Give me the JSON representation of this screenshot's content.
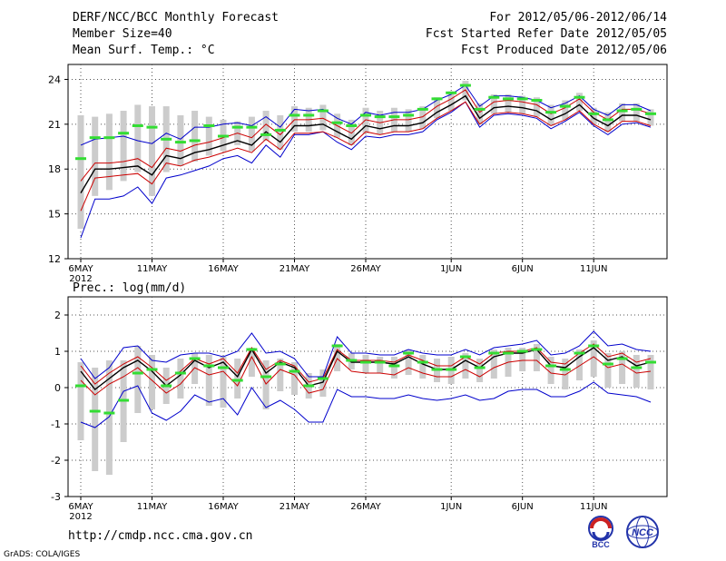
{
  "header": {
    "title": "DERF/NCC/BCC Monthly Forecast",
    "member_size": "Member Size=40",
    "variable": "Mean Surf. Temp.: °C",
    "for_range": "For 2012/05/06-2012/06/14",
    "started": "Fcst Started Refer Date 2012/05/05",
    "produced": "Fcst Produced Date 2012/05/06"
  },
  "footer": {
    "url": "http://cmdp.ncc.cma.gov.cn",
    "grads": "GrADS: COLA/IGES",
    "logo_bcc": "BCC",
    "logo_ncc": "NCC"
  },
  "colors": {
    "ensemble_mean": "#000000",
    "spread_inner": "#cc0000",
    "spread_outer": "#0000cc",
    "member_box": "#cccccc",
    "observed": "#33dd33",
    "grid": "#555555"
  },
  "chart_data": [
    {
      "type": "line",
      "title": "Mean Surf. Temp.: °C",
      "days": 40,
      "x_tick_labels": [
        "6MAY",
        "11MAY",
        "16MAY",
        "21MAY",
        "26MAY",
        "1JUN",
        "6JUN",
        "11JUN"
      ],
      "x_tick_days": [
        0,
        5,
        10,
        15,
        20,
        26,
        31,
        36
      ],
      "year_label": "2012",
      "ylim": [
        12,
        25
      ],
      "yticks": [
        12,
        15,
        18,
        21,
        24
      ],
      "series": [
        {
          "name": "ensemble-mean",
          "values": [
            16.4,
            18.0,
            18.0,
            18.1,
            18.2,
            17.6,
            18.9,
            18.7,
            19.1,
            19.3,
            19.6,
            19.9,
            19.6,
            20.5,
            19.8,
            20.9,
            20.9,
            21.0,
            20.5,
            20.0,
            20.9,
            20.7,
            20.9,
            20.9,
            21.1,
            21.8,
            22.3,
            22.9,
            21.4,
            22.1,
            22.2,
            22.1,
            21.9,
            21.3,
            21.7,
            22.3,
            21.4,
            20.9,
            21.6,
            21.6,
            21.3
          ]
        },
        {
          "name": "red-upper",
          "values": [
            17.2,
            18.4,
            18.4,
            18.5,
            18.7,
            18.1,
            19.4,
            19.2,
            19.6,
            19.8,
            20.1,
            20.4,
            20.1,
            21.0,
            20.3,
            21.3,
            21.3,
            21.4,
            20.9,
            20.4,
            21.3,
            21.1,
            21.3,
            21.3,
            21.5,
            22.2,
            22.7,
            23.3,
            21.8,
            22.5,
            22.6,
            22.5,
            22.3,
            21.7,
            22.1,
            22.7,
            21.8,
            21.3,
            22.0,
            22.0,
            21.7
          ]
        },
        {
          "name": "red-lower",
          "values": [
            15.2,
            17.4,
            17.5,
            17.6,
            17.7,
            17.0,
            18.4,
            18.2,
            18.6,
            18.8,
            19.1,
            19.4,
            19.1,
            20.0,
            19.3,
            20.4,
            20.4,
            20.5,
            20.1,
            19.6,
            20.5,
            20.3,
            20.5,
            20.5,
            20.7,
            21.4,
            21.9,
            22.5,
            21.0,
            21.7,
            21.8,
            21.7,
            21.5,
            20.9,
            21.3,
            21.9,
            21.0,
            20.5,
            21.2,
            21.2,
            20.9
          ]
        },
        {
          "name": "blue-upper",
          "values": [
            19.6,
            20.0,
            20.1,
            20.2,
            19.9,
            19.7,
            20.4,
            20.0,
            20.8,
            20.8,
            21.0,
            21.1,
            20.9,
            21.5,
            20.8,
            22.0,
            21.9,
            22.0,
            21.4,
            21.0,
            21.8,
            21.6,
            21.8,
            21.8,
            22.0,
            22.6,
            23.0,
            23.6,
            22.2,
            22.9,
            22.9,
            22.8,
            22.6,
            22.1,
            22.4,
            22.9,
            22.0,
            21.6,
            22.3,
            22.3,
            21.9
          ]
        },
        {
          "name": "blue-lower",
          "values": [
            13.4,
            16.0,
            16.0,
            16.2,
            16.8,
            15.7,
            17.4,
            17.6,
            17.9,
            18.2,
            18.7,
            18.9,
            18.4,
            19.6,
            18.8,
            20.3,
            20.3,
            20.5,
            19.8,
            19.3,
            20.2,
            20.1,
            20.3,
            20.3,
            20.5,
            21.3,
            21.8,
            22.5,
            20.8,
            21.6,
            21.7,
            21.6,
            21.4,
            20.7,
            21.2,
            21.8,
            20.9,
            20.3,
            21.0,
            21.1,
            20.8
          ]
        },
        {
          "name": "member-high",
          "values": [
            21.6,
            21.5,
            21.7,
            21.9,
            22.3,
            22.2,
            22.2,
            21.6,
            21.9,
            21.5,
            21.3,
            21.2,
            21.5,
            21.9,
            21.6,
            22.2,
            22.1,
            22.3,
            21.7,
            21.3,
            22.1,
            21.9,
            22.1,
            22.0,
            22.2,
            22.8,
            23.2,
            23.9,
            22.4,
            23.0,
            23.0,
            22.9,
            22.8,
            22.3,
            22.6,
            23.1,
            22.1,
            21.8,
            22.4,
            22.4,
            22.0
          ]
        },
        {
          "name": "member-low",
          "values": [
            14.0,
            16.2,
            16.6,
            17.2,
            17.8,
            16.2,
            17.8,
            18.2,
            18.5,
            18.9,
            19.2,
            19.6,
            19.2,
            19.9,
            19.3,
            20.5,
            20.5,
            20.6,
            20.1,
            19.6,
            20.4,
            20.3,
            20.5,
            20.5,
            20.7,
            21.4,
            21.9,
            22.6,
            21.0,
            21.7,
            21.8,
            21.7,
            21.5,
            20.9,
            21.3,
            21.9,
            21.0,
            20.5,
            21.2,
            21.2,
            20.9
          ]
        },
        {
          "name": "observed",
          "values": [
            18.7,
            20.1,
            20.1,
            20.4,
            20.9,
            20.8,
            20.0,
            19.8,
            19.9,
            20.9,
            20.2,
            20.8,
            20.8,
            20.3,
            20.6,
            21.6,
            21.6,
            21.9,
            21.1,
            20.9,
            21.6,
            21.5,
            21.5,
            21.6,
            22.0,
            22.7,
            23.1,
            23.6,
            22.0,
            22.8,
            22.7,
            22.7,
            22.6,
            21.8,
            22.2,
            22.8,
            21.7,
            21.3,
            21.9,
            22.0,
            21.7
          ]
        }
      ]
    },
    {
      "type": "line",
      "title": "Prec.: log(mm/d)",
      "days": 40,
      "x_tick_labels": [
        "6MAY",
        "11MAY",
        "16MAY",
        "21MAY",
        "26MAY",
        "1JUN",
        "6JUN",
        "11JUN"
      ],
      "x_tick_days": [
        0,
        5,
        10,
        15,
        20,
        26,
        31,
        36
      ],
      "year_label": "2012",
      "ylim": [
        -3,
        2.5
      ],
      "yticks": [
        -3,
        -2,
        -1,
        0,
        1,
        2
      ],
      "series": [
        {
          "name": "ensemble-mean",
          "values": [
            0.45,
            -0.05,
            0.25,
            0.55,
            0.75,
            0.45,
            0.05,
            0.35,
            0.75,
            0.55,
            0.7,
            0.3,
            1.05,
            0.4,
            0.7,
            0.55,
            0.05,
            0.15,
            1.0,
            0.7,
            0.7,
            0.7,
            0.65,
            0.85,
            0.65,
            0.5,
            0.5,
            0.75,
            0.55,
            0.85,
            0.95,
            0.95,
            1.05,
            0.6,
            0.55,
            0.85,
            1.1,
            0.75,
            0.85,
            0.6,
            0.7
          ]
        },
        {
          "name": "red-upper",
          "values": [
            0.6,
            0.1,
            0.4,
            0.65,
            0.85,
            0.55,
            0.2,
            0.45,
            0.8,
            0.65,
            0.8,
            0.4,
            1.1,
            0.5,
            0.75,
            0.6,
            0.15,
            0.25,
            1.05,
            0.75,
            0.75,
            0.75,
            0.7,
            0.9,
            0.75,
            0.6,
            0.6,
            0.85,
            0.65,
            0.95,
            1.0,
            1.0,
            1.1,
            0.7,
            0.65,
            0.95,
            1.2,
            0.85,
            0.95,
            0.7,
            0.8
          ]
        },
        {
          "name": "red-lower",
          "values": [
            0.2,
            -0.2,
            0.1,
            0.3,
            0.55,
            0.2,
            -0.15,
            0.1,
            0.55,
            0.35,
            0.45,
            0.05,
            0.85,
            0.1,
            0.5,
            0.35,
            -0.15,
            -0.05,
            0.8,
            0.45,
            0.4,
            0.4,
            0.35,
            0.55,
            0.4,
            0.3,
            0.3,
            0.5,
            0.3,
            0.55,
            0.7,
            0.75,
            0.75,
            0.4,
            0.35,
            0.6,
            0.85,
            0.55,
            0.65,
            0.4,
            0.45
          ]
        },
        {
          "name": "blue-upper",
          "values": [
            0.8,
            0.25,
            0.55,
            1.1,
            1.15,
            0.75,
            0.7,
            0.9,
            0.95,
            0.95,
            0.85,
            1.0,
            1.5,
            0.95,
            1.0,
            0.8,
            0.3,
            0.3,
            1.4,
            0.95,
            0.95,
            0.9,
            0.9,
            1.05,
            0.95,
            0.9,
            0.9,
            1.05,
            0.9,
            1.1,
            1.15,
            1.2,
            1.3,
            0.9,
            0.95,
            1.15,
            1.55,
            1.15,
            1.2,
            1.05,
            1.0
          ]
        },
        {
          "name": "blue-lower",
          "values": [
            -0.95,
            -1.1,
            -0.8,
            -0.1,
            0.05,
            -0.7,
            -0.9,
            -0.65,
            -0.2,
            -0.4,
            -0.3,
            -0.75,
            0.0,
            -0.55,
            -0.35,
            -0.6,
            -0.95,
            -0.95,
            -0.05,
            -0.25,
            -0.25,
            -0.3,
            -0.3,
            -0.2,
            -0.3,
            -0.35,
            -0.3,
            -0.2,
            -0.35,
            -0.3,
            -0.1,
            -0.05,
            -0.05,
            -0.25,
            -0.25,
            -0.1,
            0.15,
            -0.15,
            -0.2,
            -0.25,
            -0.4
          ]
        },
        {
          "name": "member-high",
          "values": [
            0.7,
            0.55,
            0.75,
            0.75,
            1.15,
            0.9,
            0.55,
            0.8,
            0.95,
            0.9,
            0.85,
            0.8,
            1.1,
            0.75,
            0.8,
            0.7,
            0.4,
            0.5,
            1.2,
            0.95,
            0.9,
            0.85,
            0.85,
            1.05,
            0.9,
            0.8,
            0.85,
            0.95,
            0.8,
            1.05,
            1.1,
            1.1,
            1.2,
            0.85,
            0.8,
            1.05,
            1.3,
            0.95,
            1.0,
            0.9,
            0.9
          ]
        },
        {
          "name": "member-low",
          "values": [
            -1.45,
            -2.3,
            -2.4,
            -1.5,
            -0.7,
            -0.6,
            -0.45,
            -0.3,
            0.1,
            -0.5,
            -0.55,
            -0.3,
            0.3,
            -0.6,
            -0.1,
            -0.2,
            -0.3,
            -0.25,
            0.45,
            0.5,
            0.4,
            0.4,
            0.25,
            0.35,
            0.25,
            0.15,
            0.1,
            0.25,
            0.15,
            0.25,
            0.3,
            0.45,
            0.45,
            0.1,
            -0.05,
            0.2,
            0.3,
            0.0,
            0.1,
            0.0,
            -0.05
          ]
        },
        {
          "name": "observed",
          "values": [
            0.05,
            -0.65,
            -0.7,
            -0.35,
            0.4,
            0.5,
            0.05,
            0.4,
            0.8,
            0.6,
            0.55,
            0.2,
            1.05,
            0.3,
            0.65,
            0.45,
            0.05,
            0.25,
            1.15,
            0.75,
            0.7,
            0.7,
            0.6,
            0.95,
            0.7,
            0.5,
            0.5,
            0.85,
            0.55,
            0.95,
            0.95,
            1.0,
            1.05,
            0.6,
            0.5,
            0.95,
            1.15,
            0.65,
            0.8,
            0.55,
            0.7
          ]
        }
      ]
    }
  ]
}
